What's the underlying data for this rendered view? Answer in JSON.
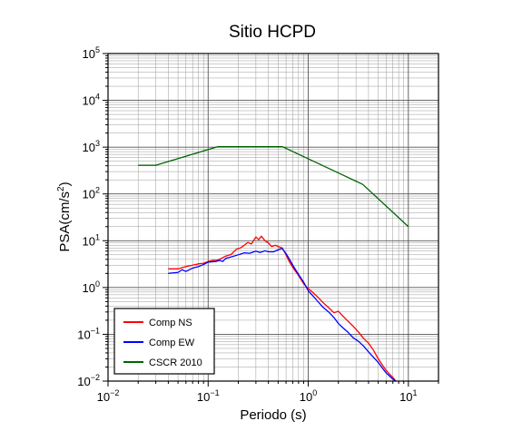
{
  "chart_data": {
    "type": "line",
    "title": "Sitio HCPD",
    "xlabel": "Periodo (s)",
    "ylabel_base": "PSA(cm/s",
    "ylabel_sup": "2",
    "ylabel_end": ")",
    "x_scale": "log",
    "y_scale": "log",
    "xlim": [
      0.01,
      20
    ],
    "ylim": [
      0.01,
      100000
    ],
    "grid": true,
    "legend_position": "bottom-left",
    "x_ticks": [
      {
        "value": 0.01,
        "base": "10",
        "exp": "−2"
      },
      {
        "value": 0.1,
        "base": "10",
        "exp": "−1"
      },
      {
        "value": 1,
        "base": "10",
        "exp": "0"
      },
      {
        "value": 10,
        "base": "10",
        "exp": "1"
      }
    ],
    "y_ticks": [
      {
        "value": 0.01,
        "base": "10",
        "exp": "−2"
      },
      {
        "value": 0.1,
        "base": "10",
        "exp": "−1"
      },
      {
        "value": 1,
        "base": "10",
        "exp": "0"
      },
      {
        "value": 10,
        "base": "10",
        "exp": "1"
      },
      {
        "value": 100,
        "base": "10",
        "exp": "2"
      },
      {
        "value": 1000,
        "base": "10",
        "exp": "3"
      },
      {
        "value": 10000,
        "base": "10",
        "exp": "4"
      },
      {
        "value": 100000,
        "base": "10",
        "exp": "5"
      }
    ],
    "series": [
      {
        "name": "Comp NS",
        "color": "#ff0000",
        "points": [
          [
            0.04,
            2.5
          ],
          [
            0.05,
            2.5
          ],
          [
            0.06,
            2.8
          ],
          [
            0.07,
            3.0
          ],
          [
            0.08,
            3.2
          ],
          [
            0.09,
            3.3
          ],
          [
            0.1,
            3.6
          ],
          [
            0.11,
            3.8
          ],
          [
            0.12,
            3.8
          ],
          [
            0.13,
            4.0
          ],
          [
            0.15,
            4.7
          ],
          [
            0.17,
            5.1
          ],
          [
            0.19,
            6.5
          ],
          [
            0.21,
            7.0
          ],
          [
            0.23,
            8.0
          ],
          [
            0.25,
            9.2
          ],
          [
            0.27,
            8.5
          ],
          [
            0.3,
            12.0
          ],
          [
            0.32,
            10.5
          ],
          [
            0.34,
            12.5
          ],
          [
            0.37,
            10.0
          ],
          [
            0.4,
            9.0
          ],
          [
            0.43,
            7.5
          ],
          [
            0.47,
            8.0
          ],
          [
            0.5,
            7.5
          ],
          [
            0.55,
            7.0
          ],
          [
            0.6,
            5.0
          ],
          [
            0.65,
            3.5
          ],
          [
            0.7,
            2.7
          ],
          [
            0.8,
            1.8
          ],
          [
            0.9,
            1.2
          ],
          [
            1.0,
            0.95
          ],
          [
            1.1,
            0.8
          ],
          [
            1.25,
            0.62
          ],
          [
            1.4,
            0.48
          ],
          [
            1.6,
            0.37
          ],
          [
            1.8,
            0.29
          ],
          [
            2.0,
            0.31
          ],
          [
            2.2,
            0.25
          ],
          [
            2.5,
            0.19
          ],
          [
            2.8,
            0.15
          ],
          [
            3.2,
            0.11
          ],
          [
            3.6,
            0.08
          ],
          [
            4.0,
            0.065
          ],
          [
            4.5,
            0.045
          ],
          [
            5.0,
            0.03
          ],
          [
            5.5,
            0.022
          ],
          [
            6.0,
            0.017
          ],
          [
            6.5,
            0.014
          ],
          [
            7.0,
            0.012
          ],
          [
            7.5,
            0.01
          ]
        ]
      },
      {
        "name": "Comp EW",
        "color": "#0000ff",
        "points": [
          [
            0.04,
            2.0
          ],
          [
            0.05,
            2.1
          ],
          [
            0.055,
            2.4
          ],
          [
            0.06,
            2.2
          ],
          [
            0.07,
            2.6
          ],
          [
            0.08,
            2.8
          ],
          [
            0.09,
            3.1
          ],
          [
            0.1,
            3.5
          ],
          [
            0.12,
            3.6
          ],
          [
            0.13,
            3.8
          ],
          [
            0.14,
            3.6
          ],
          [
            0.15,
            4.2
          ],
          [
            0.17,
            4.5
          ],
          [
            0.2,
            5.0
          ],
          [
            0.23,
            5.5
          ],
          [
            0.26,
            5.4
          ],
          [
            0.3,
            6.0
          ],
          [
            0.33,
            5.6
          ],
          [
            0.37,
            6.1
          ],
          [
            0.4,
            5.8
          ],
          [
            0.45,
            5.8
          ],
          [
            0.5,
            6.4
          ],
          [
            0.55,
            6.8
          ],
          [
            0.6,
            5.3
          ],
          [
            0.65,
            4.0
          ],
          [
            0.7,
            3.0
          ],
          [
            0.8,
            1.9
          ],
          [
            0.9,
            1.3
          ],
          [
            1.0,
            0.85
          ],
          [
            1.1,
            0.68
          ],
          [
            1.25,
            0.5
          ],
          [
            1.4,
            0.38
          ],
          [
            1.6,
            0.3
          ],
          [
            1.8,
            0.23
          ],
          [
            2.0,
            0.17
          ],
          [
            2.2,
            0.14
          ],
          [
            2.5,
            0.11
          ],
          [
            2.8,
            0.085
          ],
          [
            3.2,
            0.07
          ],
          [
            3.6,
            0.055
          ],
          [
            4.0,
            0.042
          ],
          [
            4.5,
            0.032
          ],
          [
            5.0,
            0.025
          ],
          [
            5.5,
            0.019
          ],
          [
            6.0,
            0.015
          ],
          [
            7.0,
            0.011
          ],
          [
            7.5,
            0.01
          ]
        ]
      },
      {
        "name": "CSCR 2010",
        "color": "#006400",
        "points": [
          [
            0.02,
            410
          ],
          [
            0.03,
            410
          ],
          [
            0.125,
            1025
          ],
          [
            0.55,
            1025
          ],
          [
            3.5,
            160
          ],
          [
            10.0,
            20
          ]
        ]
      }
    ]
  }
}
